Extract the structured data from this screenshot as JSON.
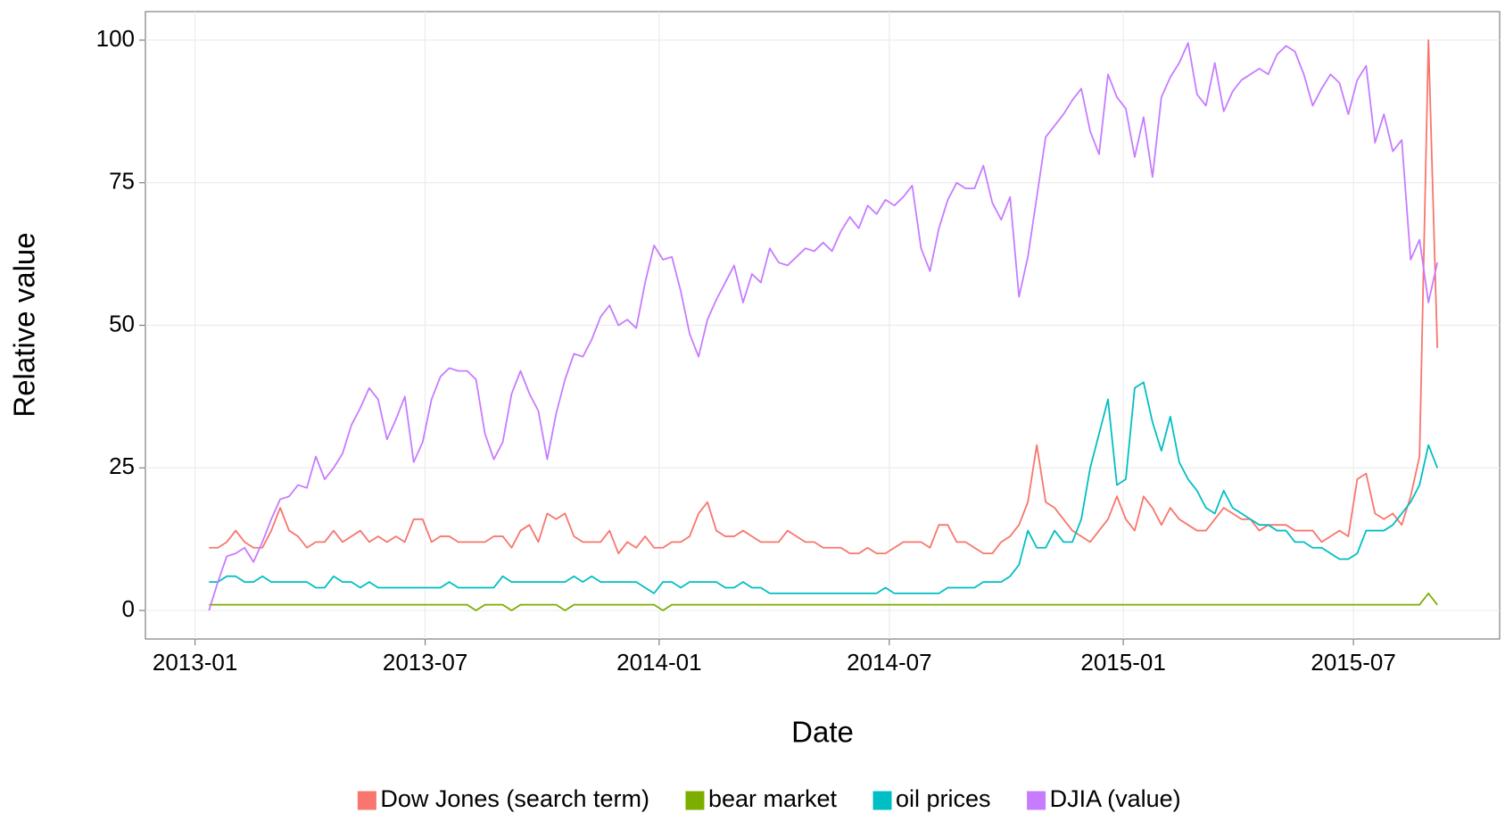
{
  "chart_data": {
    "type": "line",
    "x_label": "Date",
    "y_label": "Relative value",
    "xlim": [
      "2012-11-23",
      "2015-10-24"
    ],
    "xticks": [
      {
        "value": "2013-01-01",
        "label": "2013-01"
      },
      {
        "value": "2013-07-01",
        "label": "2013-07"
      },
      {
        "value": "2014-01-01",
        "label": "2014-01"
      },
      {
        "value": "2014-07-01",
        "label": "2014-07"
      },
      {
        "value": "2015-01-01",
        "label": "2015-01"
      },
      {
        "value": "2015-07-01",
        "label": "2015-07"
      }
    ],
    "ylim": [
      -5,
      105
    ],
    "yticks": [
      0,
      25,
      50,
      75,
      100
    ],
    "grid": true,
    "legend": "bottom",
    "x": [
      "2013-01-12",
      "2013-01-19",
      "2013-01-26",
      "2013-02-02",
      "2013-02-09",
      "2013-02-16",
      "2013-02-23",
      "2013-03-02",
      "2013-03-09",
      "2013-03-16",
      "2013-03-23",
      "2013-03-30",
      "2013-04-06",
      "2013-04-13",
      "2013-04-20",
      "2013-04-27",
      "2013-05-04",
      "2013-05-11",
      "2013-05-18",
      "2013-05-25",
      "2013-06-01",
      "2013-06-08",
      "2013-06-15",
      "2013-06-22",
      "2013-06-29",
      "2013-07-06",
      "2013-07-13",
      "2013-07-20",
      "2013-07-27",
      "2013-08-03",
      "2013-08-10",
      "2013-08-17",
      "2013-08-24",
      "2013-08-31",
      "2013-09-07",
      "2013-09-14",
      "2013-09-21",
      "2013-09-28",
      "2013-10-05",
      "2013-10-12",
      "2013-10-19",
      "2013-10-26",
      "2013-11-02",
      "2013-11-09",
      "2013-11-16",
      "2013-11-23",
      "2013-11-30",
      "2013-12-07",
      "2013-12-14",
      "2013-12-21",
      "2013-12-28",
      "2014-01-04",
      "2014-01-11",
      "2014-01-18",
      "2014-01-25",
      "2014-02-01",
      "2014-02-08",
      "2014-02-15",
      "2014-02-22",
      "2014-03-01",
      "2014-03-08",
      "2014-03-15",
      "2014-03-22",
      "2014-03-29",
      "2014-04-05",
      "2014-04-12",
      "2014-04-19",
      "2014-04-26",
      "2014-05-03",
      "2014-05-10",
      "2014-05-17",
      "2014-05-24",
      "2014-05-31",
      "2014-06-07",
      "2014-06-14",
      "2014-06-21",
      "2014-06-28",
      "2014-07-05",
      "2014-07-12",
      "2014-07-19",
      "2014-07-26",
      "2014-08-02",
      "2014-08-09",
      "2014-08-16",
      "2014-08-23",
      "2014-08-30",
      "2014-09-06",
      "2014-09-13",
      "2014-09-20",
      "2014-09-27",
      "2014-10-04",
      "2014-10-11",
      "2014-10-18",
      "2014-10-25",
      "2014-11-01",
      "2014-11-08",
      "2014-11-15",
      "2014-11-22",
      "2014-11-29",
      "2014-12-06",
      "2014-12-13",
      "2014-12-20",
      "2014-12-27",
      "2015-01-03",
      "2015-01-10",
      "2015-01-17",
      "2015-01-24",
      "2015-01-31",
      "2015-02-07",
      "2015-02-14",
      "2015-02-21",
      "2015-02-28",
      "2015-03-07",
      "2015-03-14",
      "2015-03-21",
      "2015-03-28",
      "2015-04-04",
      "2015-04-11",
      "2015-04-18",
      "2015-04-25",
      "2015-05-02",
      "2015-05-09",
      "2015-05-16",
      "2015-05-23",
      "2015-05-30",
      "2015-06-06",
      "2015-06-13",
      "2015-06-20",
      "2015-06-27",
      "2015-07-04",
      "2015-07-11",
      "2015-07-18",
      "2015-07-25",
      "2015-08-01",
      "2015-08-08",
      "2015-08-15",
      "2015-08-22",
      "2015-08-29",
      "2015-09-05"
    ],
    "series": [
      {
        "name": "Dow Jones (search term)",
        "color": "#F8766D",
        "values": [
          11,
          11,
          12,
          14,
          12,
          11,
          11,
          14,
          18,
          14,
          13,
          11,
          12,
          12,
          14,
          12,
          13,
          14,
          12,
          13,
          12,
          13,
          12,
          16,
          16,
          12,
          13,
          13,
          12,
          12,
          12,
          12,
          13,
          13,
          11,
          14,
          15,
          12,
          17,
          16,
          17,
          13,
          12,
          12,
          12,
          14,
          10,
          12,
          11,
          13,
          11,
          11,
          12,
          12,
          13,
          17,
          19,
          14,
          13,
          13,
          14,
          13,
          12,
          12,
          12,
          14,
          13,
          12,
          12,
          11,
          11,
          11,
          10,
          10,
          11,
          10,
          10,
          11,
          12,
          12,
          12,
          11,
          15,
          15,
          12,
          12,
          11,
          10,
          10,
          12,
          13,
          15,
          19,
          29,
          19,
          18,
          16,
          14,
          13,
          12,
          14,
          16,
          20,
          16,
          14,
          20,
          18,
          15,
          18,
          16,
          15,
          14,
          14,
          16,
          18,
          17,
          16,
          16,
          14,
          15,
          15,
          15,
          14,
          14,
          14,
          12,
          13,
          14,
          13,
          23,
          24,
          17,
          16,
          17,
          15,
          20,
          27,
          100,
          46
        ]
      },
      {
        "name": "bear market",
        "color": "#7CAE00",
        "values": [
          1,
          1,
          1,
          1,
          1,
          1,
          1,
          1,
          1,
          1,
          1,
          1,
          1,
          1,
          1,
          1,
          1,
          1,
          1,
          1,
          1,
          1,
          1,
          1,
          1,
          1,
          1,
          1,
          1,
          1,
          0,
          1,
          1,
          1,
          0,
          1,
          1,
          1,
          1,
          1,
          0,
          1,
          1,
          1,
          1,
          1,
          1,
          1,
          1,
          1,
          1,
          0,
          1,
          1,
          1,
          1,
          1,
          1,
          1,
          1,
          1,
          1,
          1,
          1,
          1,
          1,
          1,
          1,
          1,
          1,
          1,
          1,
          1,
          1,
          1,
          1,
          1,
          1,
          1,
          1,
          1,
          1,
          1,
          1,
          1,
          1,
          1,
          1,
          1,
          1,
          1,
          1,
          1,
          1,
          1,
          1,
          1,
          1,
          1,
          1,
          1,
          1,
          1,
          1,
          1,
          1,
          1,
          1,
          1,
          1,
          1,
          1,
          1,
          1,
          1,
          1,
          1,
          1,
          1,
          1,
          1,
          1,
          1,
          1,
          1,
          1,
          1,
          1,
          1,
          1,
          1,
          1,
          1,
          1,
          1,
          1,
          1,
          3,
          1
        ]
      },
      {
        "name": "oil prices",
        "color": "#00BFC4",
        "values": [
          5,
          5,
          6,
          6,
          5,
          5,
          6,
          5,
          5,
          5,
          5,
          5,
          4,
          4,
          6,
          5,
          5,
          4,
          5,
          4,
          4,
          4,
          4,
          4,
          4,
          4,
          4,
          5,
          4,
          4,
          4,
          4,
          4,
          6,
          5,
          5,
          5,
          5,
          5,
          5,
          5,
          6,
          5,
          6,
          5,
          5,
          5,
          5,
          5,
          4,
          3,
          5,
          5,
          4,
          5,
          5,
          5,
          5,
          4,
          4,
          5,
          4,
          4,
          3,
          3,
          3,
          3,
          3,
          3,
          3,
          3,
          3,
          3,
          3,
          3,
          3,
          4,
          3,
          3,
          3,
          3,
          3,
          3,
          4,
          4,
          4,
          4,
          5,
          5,
          5,
          6,
          8,
          14,
          11,
          11,
          14,
          12,
          12,
          16,
          25,
          31,
          37,
          22,
          23,
          39,
          40,
          33,
          28,
          34,
          26,
          23,
          21,
          18,
          17,
          21,
          18,
          17,
          16,
          15,
          15,
          14,
          14,
          12,
          12,
          11,
          11,
          10,
          9,
          9,
          10,
          14,
          14,
          14,
          15,
          17,
          19,
          22,
          29,
          25
        ]
      },
      {
        "name": "DJIA (value)",
        "color": "#C77CFF",
        "values": [
          0,
          5,
          9.5,
          10,
          11,
          8.5,
          12,
          16,
          19.5,
          20,
          22,
          21.5,
          27,
          23,
          25,
          27.5,
          32.5,
          35.5,
          39,
          37,
          30,
          33.5,
          37.5,
          26,
          29.5,
          37,
          41,
          42.5,
          42,
          42,
          40.5,
          31,
          26.5,
          29.5,
          38,
          42,
          38,
          35,
          26.5,
          34.5,
          40.5,
          45,
          44.5,
          47.5,
          51.5,
          53.5,
          50,
          51,
          49.5,
          57.5,
          64,
          61.5,
          62,
          56,
          48.5,
          44.5,
          51,
          54.5,
          57.5,
          60.5,
          54,
          59,
          57.5,
          63.5,
          61,
          60.5,
          62,
          63.5,
          63,
          64.5,
          63,
          66.5,
          69,
          67,
          71,
          69.5,
          72,
          71,
          72.5,
          74.5,
          63.5,
          59.5,
          67,
          72,
          75,
          74,
          74,
          78,
          71.5,
          68.5,
          72.5,
          55,
          62,
          72.5,
          83,
          85,
          87,
          89.5,
          91.5,
          84,
          80,
          94,
          90,
          88,
          79.5,
          86.5,
          76,
          90,
          93.5,
          96,
          99.5,
          90.5,
          88.5,
          96,
          87.5,
          91,
          93,
          94,
          95,
          94,
          97.5,
          99,
          98,
          94,
          88.5,
          91.5,
          94,
          92.5,
          87,
          93,
          95.5,
          82,
          87,
          80.5,
          82.5,
          61.5,
          65,
          54,
          61
        ]
      }
    ]
  }
}
